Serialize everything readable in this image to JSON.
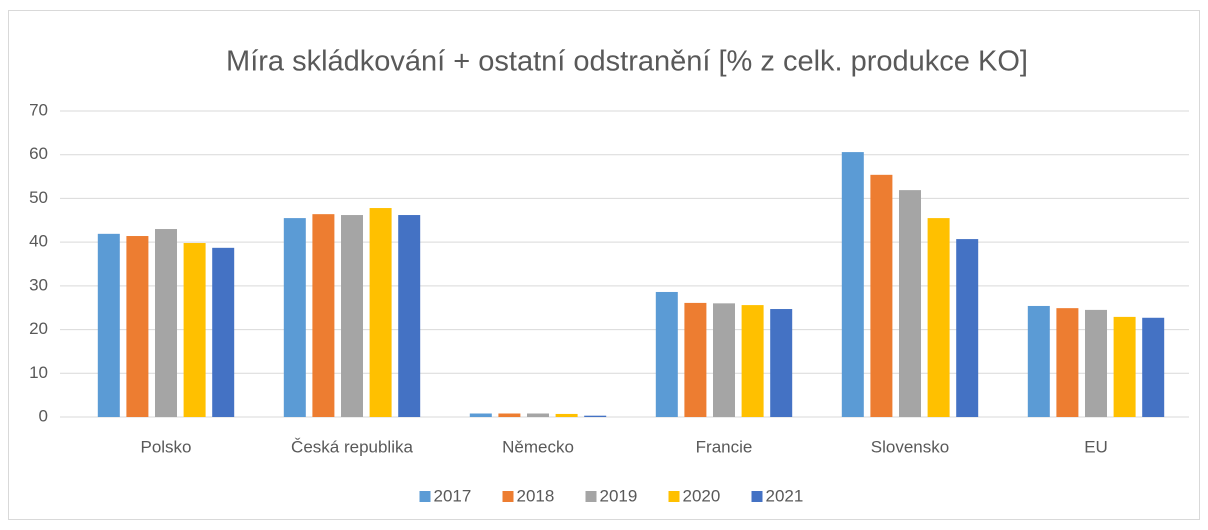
{
  "chart_data": {
    "type": "bar",
    "title": "Míra skládkování + ostatní odstranění [% z celk. produkce KO]",
    "categories": [
      "Polsko",
      "Česká republika",
      "Německo",
      "Francie",
      "Slovensko",
      "EU"
    ],
    "series": [
      {
        "name": "2017",
        "color": "#5b9bd5",
        "values": [
          41.9,
          45.5,
          0.8,
          28.6,
          60.6,
          25.4
        ]
      },
      {
        "name": "2018",
        "color": "#ed7d31",
        "values": [
          41.4,
          46.4,
          0.8,
          26.1,
          55.4,
          24.9
        ]
      },
      {
        "name": "2019",
        "color": "#a5a5a5",
        "values": [
          43.0,
          46.2,
          0.8,
          26.0,
          51.9,
          24.5
        ]
      },
      {
        "name": "2020",
        "color": "#ffc000",
        "values": [
          39.8,
          47.8,
          0.7,
          25.6,
          45.5,
          22.9
        ]
      },
      {
        "name": "2021",
        "color": "#4472c4",
        "values": [
          38.7,
          46.2,
          0.3,
          24.7,
          40.7,
          22.7
        ]
      }
    ],
    "ylim": [
      0,
      70
    ],
    "yticks": [
      0,
      10,
      20,
      30,
      40,
      50,
      60,
      70
    ],
    "grid": true,
    "legend": "bottom"
  }
}
